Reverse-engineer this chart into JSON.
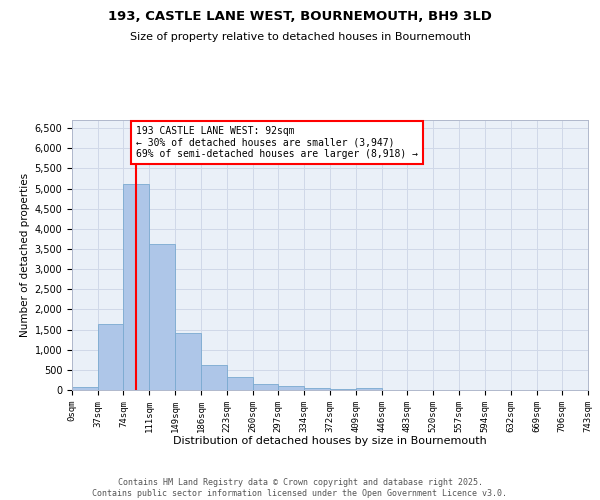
{
  "title_line1": "193, CASTLE LANE WEST, BOURNEMOUTH, BH9 3LD",
  "title_line2": "Size of property relative to detached houses in Bournemouth",
  "xlabel": "Distribution of detached houses by size in Bournemouth",
  "ylabel": "Number of detached properties",
  "bar_color": "#aec6e8",
  "bar_edge_color": "#7aaad0",
  "vline_color": "red",
  "vline_x": 92,
  "annotation_text": "193 CASTLE LANE WEST: 92sqm\n← 30% of detached houses are smaller (3,947)\n69% of semi-detached houses are larger (8,918) →",
  "annotation_box_color": "white",
  "annotation_box_edge": "red",
  "bin_edges": [
    0,
    37,
    74,
    111,
    149,
    186,
    223,
    260,
    297,
    334,
    372,
    409,
    446,
    483,
    520,
    557,
    594,
    632,
    669,
    706,
    743
  ],
  "bar_heights": [
    80,
    1650,
    5100,
    3620,
    1420,
    620,
    320,
    160,
    100,
    50,
    30,
    60,
    0,
    0,
    0,
    0,
    0,
    0,
    0,
    0
  ],
  "ylim": [
    0,
    6700
  ],
  "yticks": [
    0,
    500,
    1000,
    1500,
    2000,
    2500,
    3000,
    3500,
    4000,
    4500,
    5000,
    5500,
    6000,
    6500
  ],
  "grid_color": "#d0d8e8",
  "background_color": "#eaf0f8",
  "footer_text": "Contains HM Land Registry data © Crown copyright and database right 2025.\nContains public sector information licensed under the Open Government Licence v3.0.",
  "tick_labels": [
    "0sqm",
    "37sqm",
    "74sqm",
    "111sqm",
    "149sqm",
    "186sqm",
    "223sqm",
    "260sqm",
    "297sqm",
    "334sqm",
    "372sqm",
    "409sqm",
    "446sqm",
    "483sqm",
    "520sqm",
    "557sqm",
    "594sqm",
    "632sqm",
    "669sqm",
    "706sqm",
    "743sqm"
  ]
}
